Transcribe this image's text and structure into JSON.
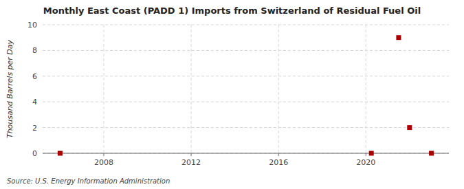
{
  "chart_data": {
    "type": "scatter",
    "title": "Monthly East Coast (PADD 1) Imports from Switzerland of Residual Fuel Oil",
    "y_label": "Thousand Barrels per Day",
    "source": "Source: U.S. Energy Information Administration",
    "x": [
      2006.0,
      2020.25,
      2021.5,
      2022.0,
      2023.0
    ],
    "values": [
      0.0,
      0.0,
      9.0,
      2.0,
      0.0
    ],
    "color": "#aa0000",
    "marker": "square",
    "xlim": [
      2005.2,
      2023.8
    ],
    "xticks": [
      2008,
      2012,
      2016,
      2020
    ],
    "ylim": [
      0,
      10
    ],
    "yticks": [
      0,
      2,
      4,
      6,
      8,
      10
    ],
    "grid": true
  }
}
